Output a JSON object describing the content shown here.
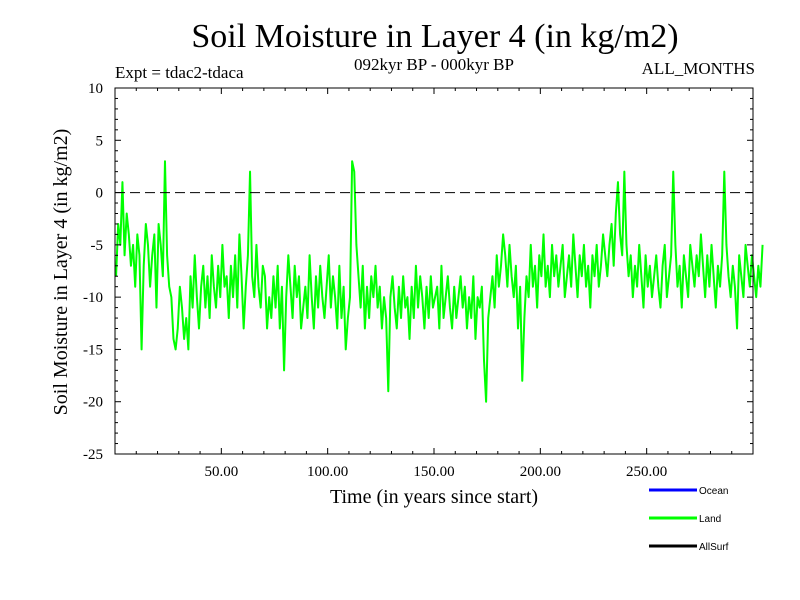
{
  "chart_data": {
    "type": "line",
    "title": "Soil Moisture in Layer 4 (in kg/m2)",
    "subtitle": "092kyr BP - 000kyr BP",
    "expt_label": "Expt = tdac2-tdaca",
    "months_label": "ALL_MONTHS",
    "xlabel": "Time (in years since start)",
    "ylabel": "Soil Moisture in Layer 4 (in kg/m2)",
    "xlim": [
      0,
      300
    ],
    "ylim": [
      -25,
      10
    ],
    "x_ticks": [
      50,
      100,
      150,
      200,
      250
    ],
    "x_tick_labels": [
      "50.00",
      "100.00",
      "150.00",
      "200.00",
      "250.00"
    ],
    "y_ticks": [
      10,
      5,
      0,
      -5,
      -10,
      -15,
      -20,
      -25
    ],
    "y_tick_labels": [
      "10",
      "5",
      "0",
      "-5",
      "-10",
      "-15",
      "-20",
      "-25"
    ],
    "reference_line": 0,
    "legend": [
      {
        "name": "Ocean",
        "color": "#0000ff"
      },
      {
        "name": "Land",
        "color": "#00ff00"
      },
      {
        "name": "AllSurf",
        "color": "#000000"
      }
    ],
    "series": [
      {
        "name": "Land",
        "color": "#00ff00",
        "x_start": 0.5,
        "x_step": 1,
        "values": [
          -8,
          -3,
          -5,
          1,
          -6,
          -2,
          -4,
          -7,
          -5,
          -9,
          -4,
          -6,
          -15,
          -7,
          -3,
          -5,
          -9,
          -6,
          -4,
          -11,
          -3,
          -5,
          -8,
          3,
          -6,
          -9,
          -10,
          -14,
          -15,
          -13,
          -9,
          -11,
          -14,
          -12,
          -15,
          -8,
          -11,
          -6,
          -10,
          -13,
          -9,
          -7,
          -11,
          -8,
          -12,
          -6,
          -9,
          -11,
          -7,
          -10,
          -5,
          -9,
          -8,
          -12,
          -7,
          -10,
          -6,
          -11,
          -4,
          -8,
          -13,
          -9,
          -6,
          2,
          -8,
          -10,
          -5,
          -9,
          -11,
          -7,
          -8,
          -13,
          -10,
          -12,
          -8,
          -11,
          -7,
          -13,
          -9,
          -17,
          -10,
          -6,
          -9,
          -12,
          -7,
          -10,
          -8,
          -13,
          -11,
          -9,
          -12,
          -6,
          -10,
          -13,
          -8,
          -11,
          -7,
          -10,
          -12,
          -9,
          -6,
          -11,
          -8,
          -10,
          -13,
          -7,
          -12,
          -9,
          -15,
          -12,
          -10,
          3,
          2,
          -5,
          -8,
          -11,
          -7,
          -13,
          -9,
          -12,
          -8,
          -10,
          -7,
          -11,
          -9,
          -13,
          -10,
          -12,
          -19,
          -10,
          -8,
          -11,
          -13,
          -9,
          -12,
          -8,
          -11,
          -10,
          -14,
          -9,
          -12,
          -7,
          -11,
          -8,
          -10,
          -13,
          -9,
          -12,
          -8,
          -11,
          -10,
          -9,
          -13,
          -7,
          -12,
          -10,
          -8,
          -11,
          -13,
          -9,
          -12,
          -10,
          -8,
          -11,
          -9,
          -13,
          -10,
          -12,
          -8,
          -14,
          -10,
          -11,
          -9,
          -16,
          -20,
          -12,
          -10,
          -8,
          -11,
          -6,
          -9,
          -7,
          -4,
          -6,
          -9,
          -5,
          -8,
          -10,
          -7,
          -13,
          -9,
          -18,
          -12,
          -8,
          -10,
          -5,
          -9,
          -7,
          -11,
          -6,
          -8,
          -4,
          -9,
          -7,
          -10,
          -5,
          -8,
          -6,
          -9,
          -7,
          -5,
          -10,
          -8,
          -6,
          -9,
          -4,
          -7,
          -10,
          -6,
          -8,
          -5,
          -9,
          -7,
          -11,
          -6,
          -8,
          -5,
          -9,
          -7,
          -4,
          -6,
          -8,
          -5,
          -3,
          -7,
          -2,
          1,
          -4,
          -6,
          2,
          -5,
          -8,
          -6,
          -10,
          -7,
          -9,
          -5,
          -8,
          -11,
          -6,
          -9,
          -7,
          -10,
          -8,
          -6,
          -9,
          -11,
          -7,
          -5,
          -10,
          -8,
          -6,
          2,
          -5,
          -9,
          -7,
          -11,
          -6,
          -8,
          -10,
          -5,
          -7,
          -9,
          -6,
          -8,
          -4,
          -7,
          -10,
          -6,
          -9,
          -5,
          -8,
          -11,
          -7,
          -9,
          -6,
          2,
          -5,
          -8,
          -10,
          -7,
          -9,
          -13,
          -6,
          -8,
          -10,
          -5,
          -7,
          -9,
          -6,
          -8,
          -10,
          -7,
          -9,
          -5
        ]
      }
    ]
  }
}
